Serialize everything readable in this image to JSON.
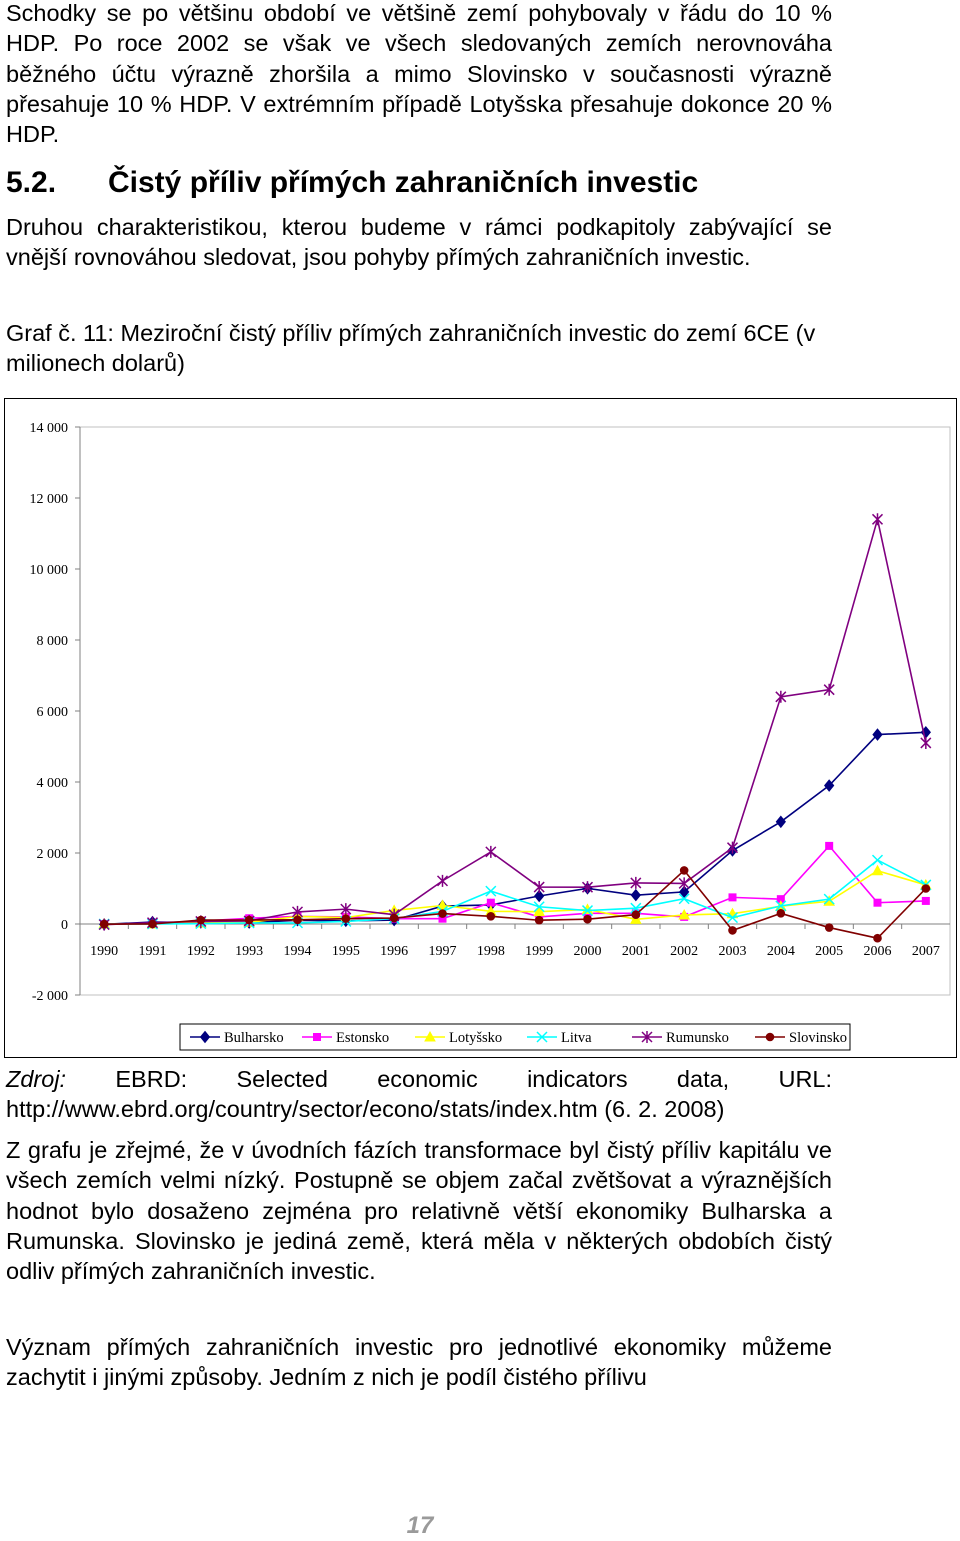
{
  "intro_paragraph": "Schodky se po většinu období ve většině zemí pohybovaly v řádu do 10 % HDP. Po roce 2002 se však ve všech sledovaných zemích nerovnováha běžného účtu výrazně zhoršila a mimo Slovinsko v současnosti výrazně přesahuje 10 % HDP. V extrémním případě Lotyšska přesahuje dokonce 20 % HDP.",
  "section": {
    "number": "5.2.",
    "title": "Čistý příliv přímých zahraničních investic"
  },
  "section_paragraph": "Druhou charakteristikou, kterou budeme v rámci podkapitoly zabývající se vnější rovnováhou sledovat, jsou pohyby přímých zahraničních investic.",
  "figure_caption": "Graf č. 11: Meziroční čistý příliv přímých zahraničních investic do zemí 6CE (v milionech dolarů)",
  "source": {
    "label": "Zdroj:",
    "text": "EBRD: Selected economic indicators data, URL: http://www.ebrd.org/country/sector/econo/stats/index.htm (6. 2. 2008)"
  },
  "conclusion_paragraph": "Z grafu je zřejmé, že v úvodních fázích transformace byl čistý příliv kapitálu ve všech zemích velmi nízký. Postupně se objem začal zvětšovat a výraznějších hodnot bylo dosaženo zejména pro relativně větší ekonomiky Bulharska a Rumunska. Slovinsko je jediná země, která měla v některých obdobích čistý odliv přímých zahraničních investic.",
  "final_paragraph": "Význam přímých zahraničních investic pro jednotlivé ekonomiky můžeme zachytit i jinými způsoby. Jedním z nich je podíl čistého přílivu",
  "page_number": "17",
  "chart_data": {
    "type": "line",
    "title": "",
    "xlabel": "",
    "ylabel": "",
    "ylim": [
      -2000,
      14000
    ],
    "yticks": [
      -2000,
      0,
      2000,
      4000,
      6000,
      8000,
      10000,
      12000,
      14000
    ],
    "ytick_labels": [
      "-2 000",
      "0",
      "2 000",
      "4 000",
      "6 000",
      "8 000",
      "10 000",
      "12 000",
      "14 000"
    ],
    "grid": false,
    "legend_position": "bottom",
    "categories": [
      "1990",
      "1991",
      "1992",
      "1993",
      "1994",
      "1995",
      "1996",
      "1997",
      "1998",
      "1999",
      "2000",
      "2001",
      "2002",
      "2003",
      "2004",
      "2005",
      "2006",
      "2007"
    ],
    "series": [
      {
        "name": "Bulharsko",
        "color": "#00007f",
        "marker": "diamond",
        "values": [
          -10,
          56,
          42,
          40,
          105,
          90,
          109,
          505,
          537,
          789,
          1003,
          813,
          905,
          2070,
          2879,
          3900,
          5336,
          5400
        ]
      },
      {
        "name": "Estonsko",
        "color": "#ff00ff",
        "marker": "square",
        "values": [
          0,
          0,
          82,
          162,
          214,
          201,
          150,
          150,
          600,
          200,
          300,
          300,
          200,
          750,
          700,
          2200,
          600,
          650
        ]
      },
      {
        "name": "Lotyšsko",
        "color": "#ffff00",
        "marker": "triangle",
        "values": [
          0,
          0,
          29,
          45,
          214,
          180,
          382,
          521,
          357,
          348,
          410,
          132,
          254,
          290,
          500,
          640,
          1500,
          1100
        ]
      },
      {
        "name": "Litva",
        "color": "#00ffff",
        "marker": "x",
        "values": [
          0,
          0,
          10,
          30,
          31,
          73,
          152,
          355,
          926,
          486,
          379,
          446,
          712,
          180,
          510,
          700,
          1800,
          1100
        ]
      },
      {
        "name": "Rumunsko",
        "color": "#800080",
        "marker": "star",
        "values": [
          -18,
          37,
          73,
          87,
          341,
          419,
          263,
          1215,
          2031,
          1041,
          1037,
          1157,
          1144,
          2150,
          6400,
          6600,
          11400,
          5100
        ]
      },
      {
        "name": "Slovinsko",
        "color": "#800000",
        "marker": "circle",
        "values": [
          -2,
          0,
          111,
          113,
          117,
          151,
          167,
          295,
          216,
          106,
          136,
          263,
          1510,
          -180,
          300,
          -100,
          -400,
          1000
        ]
      }
    ]
  }
}
